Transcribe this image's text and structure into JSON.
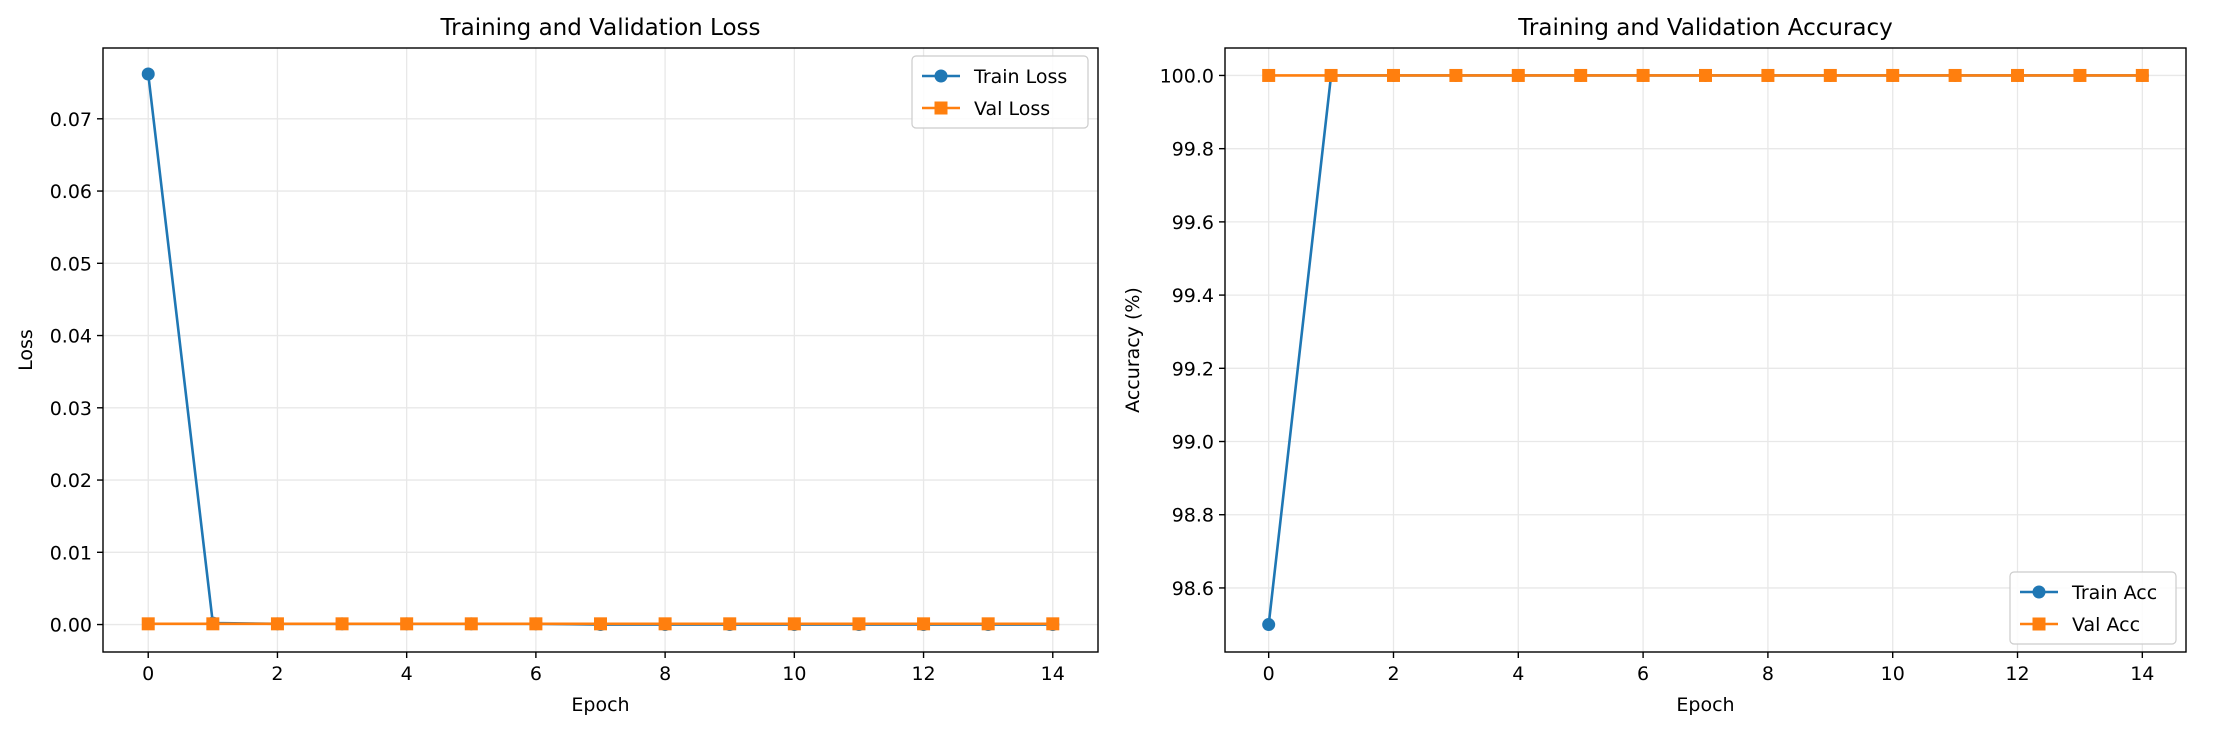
{
  "chart_data": [
    {
      "type": "line",
      "title": "Training and Validation Loss",
      "xlabel": "Epoch",
      "ylabel": "Loss",
      "xlim": [
        -0.7,
        14.7
      ],
      "ylim": [
        -0.0038,
        0.0798
      ],
      "xticks": [
        0,
        2,
        4,
        6,
        8,
        10,
        12,
        14
      ],
      "xtick_labels": [
        "0",
        "2",
        "4",
        "6",
        "8",
        "10",
        "12",
        "14"
      ],
      "yticks": [
        0.0,
        0.01,
        0.02,
        0.03,
        0.04,
        0.05,
        0.06,
        0.07
      ],
      "ytick_labels": [
        "0.00",
        "0.01",
        "0.02",
        "0.03",
        "0.04",
        "0.05",
        "0.06",
        "0.07"
      ],
      "grid": true,
      "legend_position": "top-right",
      "x": [
        0,
        1,
        2,
        3,
        4,
        5,
        6,
        7,
        8,
        9,
        10,
        11,
        12,
        13,
        14
      ],
      "series": [
        {
          "name": "Train Loss",
          "marker": "circle",
          "color": "#1f77b4",
          "values": [
            0.0762,
            0.0002,
            0.0001,
            0.0001,
            0.0001,
            0.0001,
            0.0001,
            0.0,
            0.0,
            0.0,
            0.0,
            0.0,
            0.0,
            0.0,
            0.0
          ]
        },
        {
          "name": "Val Loss",
          "marker": "square",
          "color": "#ff7f0e",
          "values": [
            0.0001,
            0.0001,
            0.0001,
            0.0001,
            0.0001,
            0.0001,
            0.0001,
            0.0001,
            0.0001,
            0.0001,
            0.0001,
            0.0001,
            0.0001,
            0.0001,
            0.0001
          ]
        }
      ]
    },
    {
      "type": "line",
      "title": "Training and Validation Accuracy",
      "xlabel": "Epoch",
      "ylabel": "Accuracy (%)",
      "xlim": [
        -0.7,
        14.7
      ],
      "ylim": [
        98.425,
        100.075
      ],
      "xticks": [
        0,
        2,
        4,
        6,
        8,
        10,
        12,
        14
      ],
      "xtick_labels": [
        "0",
        "2",
        "4",
        "6",
        "8",
        "10",
        "12",
        "14"
      ],
      "yticks": [
        98.6,
        98.8,
        99.0,
        99.2,
        99.4,
        99.6,
        99.8,
        100.0
      ],
      "ytick_labels": [
        "98.6",
        "98.8",
        "99.0",
        "99.2",
        "99.4",
        "99.6",
        "99.8",
        "100.0"
      ],
      "grid": true,
      "legend_position": "bottom-right",
      "x": [
        0,
        1,
        2,
        3,
        4,
        5,
        6,
        7,
        8,
        9,
        10,
        11,
        12,
        13,
        14
      ],
      "series": [
        {
          "name": "Train Acc",
          "marker": "circle",
          "color": "#1f77b4",
          "values": [
            98.5,
            100.0,
            100.0,
            100.0,
            100.0,
            100.0,
            100.0,
            100.0,
            100.0,
            100.0,
            100.0,
            100.0,
            100.0,
            100.0,
            100.0
          ]
        },
        {
          "name": "Val Acc",
          "marker": "square",
          "color": "#ff7f0e",
          "values": [
            100.0,
            100.0,
            100.0,
            100.0,
            100.0,
            100.0,
            100.0,
            100.0,
            100.0,
            100.0,
            100.0,
            100.0,
            100.0,
            100.0,
            100.0
          ]
        }
      ]
    }
  ]
}
